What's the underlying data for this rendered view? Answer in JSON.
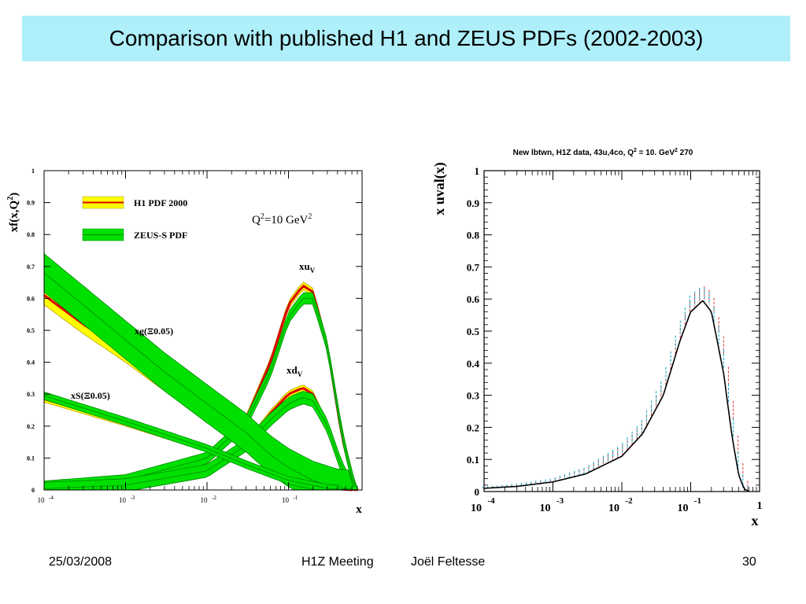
{
  "slide": {
    "title": "Comparison with published H1 and ZEUS PDFs (2002-2003)"
  },
  "footer": {
    "date": "25/03/2008",
    "meeting": "H1Z Meeting",
    "author": "Joël Feltesse",
    "page": "30"
  },
  "chart_data": [
    {
      "type": "line",
      "y_axis_title_main": "xf(x,Q",
      "y_axis_title_sup": "2",
      "y_axis_title_end": ")",
      "xlabel": "x",
      "x_scale": "log",
      "xlim": [
        0.0001,
        0.8
      ],
      "ylim": [
        0,
        1
      ],
      "y_ticks": [
        "0",
        "0.1",
        "0.2",
        "0.3",
        "0.4",
        "0.5",
        "0.6",
        "0.7",
        "0.8",
        "0.9",
        "1"
      ],
      "x_ticks": [
        {
          "base": "10",
          "exp": "-4"
        },
        {
          "base": "10",
          "exp": "-3"
        },
        {
          "base": "10",
          "exp": "-2"
        },
        {
          "base": "10",
          "exp": "-1"
        }
      ],
      "legend": [
        {
          "label": "H1 PDF 2000",
          "color": "#ffff00",
          "line": "#dd0000"
        },
        {
          "label": "ZEUS-S PDF",
          "color": "#00e000",
          "line": "#008800"
        }
      ],
      "annotation_q2": {
        "pre": "Q",
        "sup1": "2",
        "mid": "=10 GeV",
        "sup2": "2"
      },
      "curve_labels": {
        "xuv": {
          "main": "xu",
          "sub": "V"
        },
        "xdv": {
          "main": "xd",
          "sub": "V"
        },
        "xg": "xg(Ξ0.05)",
        "xs": "xS(Ξ0.05)"
      },
      "series": [
        {
          "name": "xu_V",
          "band": "H1",
          "x": [
            0.0001,
            0.001,
            0.01,
            0.03,
            0.06,
            0.1,
            0.15,
            0.2,
            0.3,
            0.45,
            0.6,
            0.7
          ],
          "y": [
            0.01,
            0.03,
            0.1,
            0.22,
            0.4,
            0.58,
            0.64,
            0.62,
            0.45,
            0.17,
            0.04,
            0.0
          ],
          "width": 0.012
        },
        {
          "name": "xu_V",
          "band": "ZEUS",
          "x": [
            0.0001,
            0.001,
            0.01,
            0.03,
            0.06,
            0.1,
            0.15,
            0.2,
            0.3,
            0.45,
            0.6,
            0.7
          ],
          "y": [
            0.01,
            0.03,
            0.1,
            0.21,
            0.37,
            0.54,
            0.6,
            0.6,
            0.45,
            0.18,
            0.04,
            0.0
          ],
          "width": 0.018
        },
        {
          "name": "xd_V",
          "band": "H1",
          "x": [
            0.0001,
            0.001,
            0.01,
            0.03,
            0.06,
            0.1,
            0.15,
            0.2,
            0.3,
            0.45,
            0.6,
            0.7
          ],
          "y": [
            0.003,
            0.015,
            0.06,
            0.14,
            0.24,
            0.3,
            0.32,
            0.3,
            0.2,
            0.07,
            0.01,
            0.0
          ],
          "width": 0.01
        },
        {
          "name": "xd_V",
          "band": "ZEUS",
          "x": [
            0.0001,
            0.001,
            0.01,
            0.03,
            0.06,
            0.1,
            0.15,
            0.2,
            0.3,
            0.45,
            0.6,
            0.7
          ],
          "y": [
            0.004,
            0.015,
            0.06,
            0.14,
            0.22,
            0.27,
            0.29,
            0.28,
            0.2,
            0.07,
            0.01,
            0.0
          ],
          "width": 0.02
        },
        {
          "name": "xg(Ξ0.05)",
          "band": "H1",
          "x": [
            0.0001,
            0.0003,
            0.001,
            0.003,
            0.01,
            0.03,
            0.06,
            0.1,
            0.2,
            0.4,
            0.7
          ],
          "y": [
            0.61,
            0.52,
            0.43,
            0.34,
            0.25,
            0.17,
            0.1,
            0.07,
            0.03,
            0.005,
            0.0
          ],
          "width": 0.03
        },
        {
          "name": "xg(Ξ0.05)",
          "band": "ZEUS",
          "x": [
            0.0001,
            0.0003,
            0.001,
            0.003,
            0.01,
            0.03,
            0.06,
            0.1,
            0.2,
            0.4,
            0.7
          ],
          "y": [
            0.68,
            0.58,
            0.47,
            0.37,
            0.27,
            0.18,
            0.11,
            0.07,
            0.03,
            0.005,
            0.0
          ],
          "width": 0.06
        },
        {
          "name": "xS(Ξ0.05)",
          "band": "H1",
          "x": [
            0.0001,
            0.001,
            0.01,
            0.03,
            0.1,
            0.3,
            0.6
          ],
          "y": [
            0.285,
            0.21,
            0.13,
            0.08,
            0.03,
            0.005,
            0.0
          ],
          "width": 0.01
        },
        {
          "name": "xS(Ξ0.05)",
          "band": "ZEUS",
          "x": [
            0.0001,
            0.001,
            0.01,
            0.03,
            0.1,
            0.3,
            0.6
          ],
          "y": [
            0.295,
            0.215,
            0.13,
            0.08,
            0.03,
            0.005,
            0.0
          ],
          "width": 0.012
        }
      ]
    },
    {
      "type": "line",
      "title": {
        "text": "New lbtwn, H1Z data, 43u,4co, Q",
        "sup1": "2",
        "mid": " = 10. GeV",
        "sup2": "2",
        "end": " 270"
      },
      "ylabel": "x uval(x)",
      "xlabel": "x",
      "x_scale": "log",
      "xlim": [
        0.0001,
        1
      ],
      "ylim": [
        0,
        1
      ],
      "y_ticks": [
        "0",
        "0.1",
        "0.2",
        "0.3",
        "0.4",
        "0.5",
        "0.6",
        "0.7",
        "0.8",
        "0.9",
        "1"
      ],
      "x_ticks": [
        {
          "base": "10",
          "exp": "-4"
        },
        {
          "base": "10",
          "exp": "-3"
        },
        {
          "base": "10",
          "exp": "-2"
        },
        {
          "base": "10",
          "exp": "-1"
        },
        {
          "base": "1",
          "exp": ""
        }
      ],
      "series": [
        {
          "name": "fit",
          "color": "#000000",
          "x": [
            0.0001,
            0.0003,
            0.001,
            0.003,
            0.01,
            0.02,
            0.04,
            0.07,
            0.1,
            0.15,
            0.2,
            0.3,
            0.4,
            0.5,
            0.6,
            0.7
          ],
          "y": [
            0.01,
            0.016,
            0.03,
            0.055,
            0.11,
            0.18,
            0.3,
            0.47,
            0.56,
            0.595,
            0.56,
            0.37,
            0.17,
            0.05,
            0.008,
            0.0
          ]
        },
        {
          "name": "error-bars",
          "colors": [
            "#00aacc",
            "#dd3333"
          ],
          "x": [
            0.0001,
            0.0003,
            0.001,
            0.003,
            0.01,
            0.02,
            0.04,
            0.07,
            0.1,
            0.15,
            0.2,
            0.3,
            0.4,
            0.5,
            0.6,
            0.7
          ],
          "y": [
            0.012,
            0.02,
            0.035,
            0.065,
            0.13,
            0.2,
            0.33,
            0.5,
            0.59,
            0.62,
            0.6,
            0.44,
            0.25,
            0.1,
            0.03,
            0.005
          ],
          "err": [
            0.003,
            0.004,
            0.006,
            0.01,
            0.015,
            0.02,
            0.02,
            0.02,
            0.02,
            0.02,
            0.02,
            0.03,
            0.03,
            0.03,
            0.02,
            0.01
          ]
        }
      ]
    }
  ]
}
